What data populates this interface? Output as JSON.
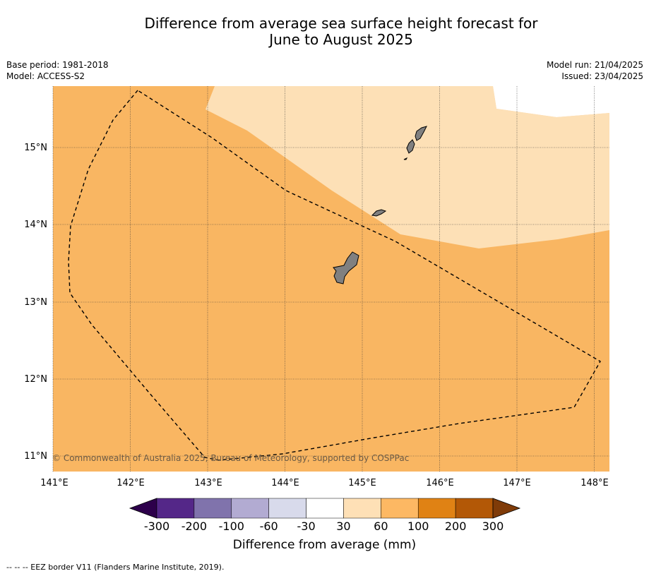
{
  "title": {
    "line1": "Difference from average sea surface height forecast for",
    "line2": "June to August 2025"
  },
  "meta_left": {
    "base_period": "Base period: 1981-2018",
    "model": "Model: ACCESS-S2"
  },
  "meta_right": {
    "model_run": "Model run: 21/04/2025",
    "issued": "Issued: 23/04/2025"
  },
  "map": {
    "copyright": "© Commonwealth of Australia 2025, Bureau of Meteorology, supported by COSPPac",
    "lon_ticks": [
      "141°E",
      "142°E",
      "143°E",
      "144°E",
      "145°E",
      "146°E",
      "147°E",
      "148°E"
    ],
    "lat_ticks": [
      "15°N",
      "14°N",
      "13°N",
      "12°N",
      "11°N"
    ],
    "region_colors": {
      "100_to_200_or_60_to_100_main": "#f9b662",
      "30_to_60": "#fde0b6",
      "minus30_to_30": "#ffffff",
      "land": "#808080"
    }
  },
  "colorbar": {
    "tick_labels": [
      "-300",
      "-200",
      "-100",
      "-60",
      "-30",
      "30",
      "60",
      "100",
      "200",
      "300"
    ],
    "colors": [
      "#2d004b",
      "#542788",
      "#8073ac",
      "#b2abd2",
      "#d8daeb",
      "#ffffff",
      "#fee0b6",
      "#fdb863",
      "#e08214",
      "#b35806",
      "#7f3b08"
    ],
    "label": "Difference from average (mm)"
  },
  "footer": "--  --  -- EEZ border V11 (Flanders Marine Institute, 2019)."
}
